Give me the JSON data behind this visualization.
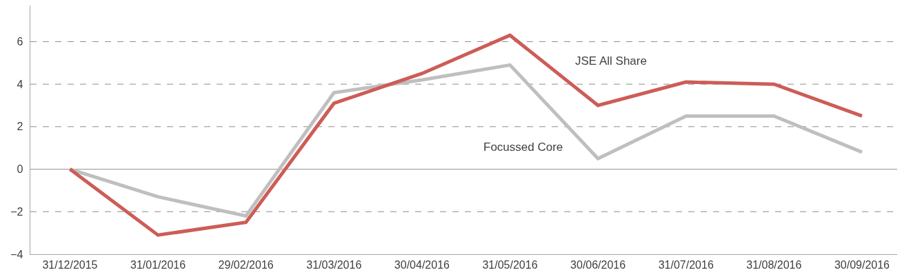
{
  "chart_data": {
    "type": "line",
    "categories": [
      "31/12/2015",
      "31/01/2016",
      "29/02/2016",
      "31/03/2016",
      "30/04/2016",
      "31/05/2016",
      "30/06/2016",
      "31/07/2016",
      "31/08/2016",
      "30/09/2016"
    ],
    "series": [
      {
        "name": "Focussed Core",
        "color": "#bfbfbf",
        "values": [
          0,
          -1.3,
          -2.2,
          3.6,
          4.2,
          4.9,
          0.5,
          2.5,
          2.5,
          0.8
        ]
      },
      {
        "name": "JSE All Share",
        "color": "#cd5c57",
        "values": [
          0,
          -3.1,
          -2.5,
          3.1,
          4.5,
          6.3,
          3.0,
          4.1,
          4.0,
          2.5
        ]
      }
    ],
    "ylim": [
      -4,
      7.7
    ],
    "yticks": [
      -4,
      -2,
      0,
      2,
      4,
      6
    ],
    "grid": "y",
    "marker": "none",
    "line_style": "solid",
    "legend": false
  }
}
